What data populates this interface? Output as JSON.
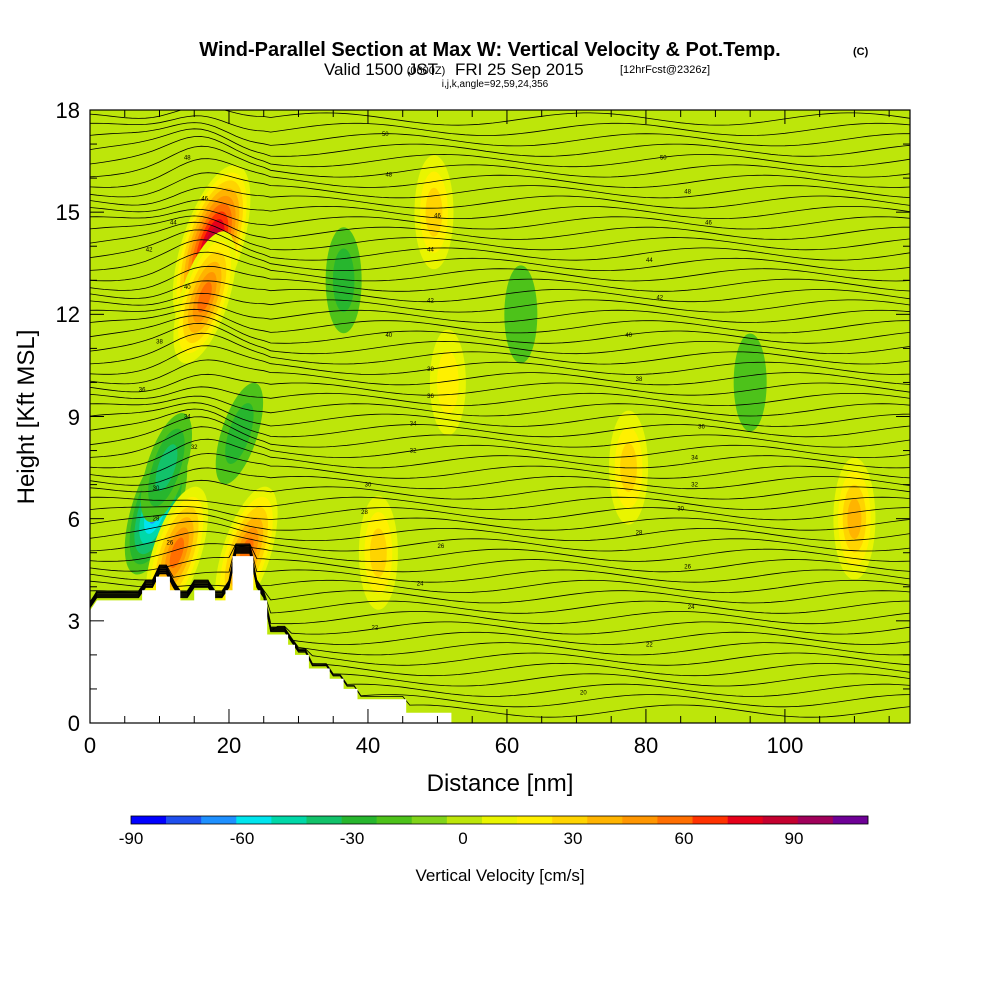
{
  "title": {
    "main": "Wind-Parallel Section at Max W: Vertical Velocity & Pot.Temp.",
    "copyright": "(C)",
    "valid": "Valid 1500 JST",
    "zulu": "(0600Z)",
    "date": "FRI 25 Sep 2015",
    "fcst": "[12hrFcst@2326z]",
    "params": "i,j,k,angle=92,59,24,356"
  },
  "chart_data": {
    "type": "heatmap",
    "xlabel": "Distance [nm]",
    "ylabel": "Height [Kft MSL]",
    "xlim": [
      0,
      118
    ],
    "ylim": [
      0,
      18
    ],
    "xticks": [
      "0",
      "20",
      "40",
      "60",
      "80",
      "100"
    ],
    "yticks": [
      "0",
      "3",
      "6",
      "9",
      "12",
      "15",
      "18"
    ],
    "colorbar": {
      "label": "Vertical Velocity [cm/s]",
      "ticks": [
        "-90",
        "-60",
        "-30",
        "0",
        "30",
        "60",
        "90"
      ],
      "min": -90,
      "max": 110,
      "step": 10,
      "colors": [
        "#0000ff",
        "#1f4fee",
        "#1e90ff",
        "#00e5ee",
        "#00d8a8",
        "#12c26a",
        "#27b62e",
        "#4dc21a",
        "#80d41a",
        "#bde60a",
        "#e9f500",
        "#fff000",
        "#ffd400",
        "#ffb400",
        "#ff9600",
        "#ff6e00",
        "#ff3200",
        "#e6001a",
        "#c4002f",
        "#a0005a",
        "#6e0096"
      ]
    },
    "velocity_features": [
      {
        "x": 17.5,
        "y": 14.0,
        "value": 100
      },
      {
        "x": 16.5,
        "y": 12.5,
        "value": 60
      },
      {
        "x": 9.5,
        "y": 6.3,
        "value": -60
      },
      {
        "x": 11.0,
        "y": 7.5,
        "value": -30
      },
      {
        "x": 22.5,
        "y": 5.0,
        "value": 60
      },
      {
        "x": 12.5,
        "y": 5.0,
        "value": 60
      },
      {
        "x": 21.5,
        "y": 8.5,
        "value": -20
      },
      {
        "x": 49.5,
        "y": 15.0,
        "value": 30
      },
      {
        "x": 51.5,
        "y": 10.0,
        "value": 20
      },
      {
        "x": 41.5,
        "y": 5.0,
        "value": 30
      },
      {
        "x": 77.5,
        "y": 7.5,
        "value": 30
      },
      {
        "x": 110.0,
        "y": 6.0,
        "value": 40
      },
      {
        "x": 36.5,
        "y": 13.0,
        "value": -20
      },
      {
        "x": 62.0,
        "y": 12.0,
        "value": -10
      },
      {
        "x": 95.0,
        "y": 10.0,
        "value": -10
      }
    ],
    "isotherm_labels": [
      {
        "x": 42.5,
        "y": 17.3,
        "text": "50"
      },
      {
        "x": 82.5,
        "y": 16.6,
        "text": "50"
      },
      {
        "x": 14.0,
        "y": 16.6,
        "text": "48"
      },
      {
        "x": 43.0,
        "y": 16.1,
        "text": "48"
      },
      {
        "x": 86.0,
        "y": 15.6,
        "text": "48"
      },
      {
        "x": 16.5,
        "y": 15.4,
        "text": "46"
      },
      {
        "x": 50.0,
        "y": 14.9,
        "text": "46"
      },
      {
        "x": 89.0,
        "y": 14.7,
        "text": "46"
      },
      {
        "x": 12.0,
        "y": 14.7,
        "text": "44"
      },
      {
        "x": 49.0,
        "y": 13.9,
        "text": "44"
      },
      {
        "x": 80.5,
        "y": 13.6,
        "text": "44"
      },
      {
        "x": 8.5,
        "y": 13.9,
        "text": "42"
      },
      {
        "x": 49.0,
        "y": 12.4,
        "text": "42"
      },
      {
        "x": 82.0,
        "y": 12.5,
        "text": "42"
      },
      {
        "x": 14.0,
        "y": 12.8,
        "text": "40"
      },
      {
        "x": 43.0,
        "y": 11.4,
        "text": "40"
      },
      {
        "x": 77.5,
        "y": 11.4,
        "text": "40"
      },
      {
        "x": 10.0,
        "y": 11.2,
        "text": "38"
      },
      {
        "x": 49.0,
        "y": 10.4,
        "text": "38"
      },
      {
        "x": 79.0,
        "y": 10.1,
        "text": "38"
      },
      {
        "x": 7.5,
        "y": 9.8,
        "text": "36"
      },
      {
        "x": 49.0,
        "y": 9.6,
        "text": "36"
      },
      {
        "x": 88.0,
        "y": 8.7,
        "text": "36"
      },
      {
        "x": 14.0,
        "y": 9.0,
        "text": "34"
      },
      {
        "x": 46.5,
        "y": 8.8,
        "text": "34"
      },
      {
        "x": 87.0,
        "y": 7.8,
        "text": "34"
      },
      {
        "x": 15.0,
        "y": 8.1,
        "text": "32"
      },
      {
        "x": 46.5,
        "y": 8.0,
        "text": "32"
      },
      {
        "x": 87.0,
        "y": 7.0,
        "text": "32"
      },
      {
        "x": 40.0,
        "y": 7.0,
        "text": "30"
      },
      {
        "x": 85.0,
        "y": 6.3,
        "text": "30"
      },
      {
        "x": 39.5,
        "y": 6.2,
        "text": "28"
      },
      {
        "x": 79.0,
        "y": 5.6,
        "text": "28"
      },
      {
        "x": 50.5,
        "y": 5.2,
        "text": "26"
      },
      {
        "x": 86.0,
        "y": 4.6,
        "text": "26"
      },
      {
        "x": 47.5,
        "y": 4.1,
        "text": "24"
      },
      {
        "x": 86.5,
        "y": 3.4,
        "text": "24"
      },
      {
        "x": 41.0,
        "y": 2.8,
        "text": "22"
      },
      {
        "x": 80.5,
        "y": 2.3,
        "text": "22"
      },
      {
        "x": 71.0,
        "y": 0.9,
        "text": "20"
      },
      {
        "x": 9.5,
        "y": 6.9,
        "text": "30"
      },
      {
        "x": 9.5,
        "y": 6.0,
        "text": "28"
      },
      {
        "x": 11.5,
        "y": 5.3,
        "text": "26"
      }
    ],
    "terrain_profile": [
      [
        0,
        3.3
      ],
      [
        1,
        3.6
      ],
      [
        7.5,
        3.6
      ],
      [
        7.5,
        3.9
      ],
      [
        9.5,
        3.9
      ],
      [
        9.5,
        4.3
      ],
      [
        11.5,
        4.3
      ],
      [
        11.5,
        3.9
      ],
      [
        13,
        3.9
      ],
      [
        13,
        3.6
      ],
      [
        15,
        3.6
      ],
      [
        15,
        3.9
      ],
      [
        18,
        3.9
      ],
      [
        18,
        3.6
      ],
      [
        19.5,
        3.6
      ],
      [
        19.5,
        3.9
      ],
      [
        20.5,
        3.9
      ],
      [
        20.5,
        4.9
      ],
      [
        23.5,
        4.9
      ],
      [
        23.5,
        3.9
      ],
      [
        24.5,
        3.9
      ],
      [
        24.5,
        3.6
      ],
      [
        25.5,
        3.6
      ],
      [
        25.5,
        2.6
      ],
      [
        28.5,
        2.6
      ],
      [
        28.5,
        2.3
      ],
      [
        29.5,
        2.3
      ],
      [
        29.5,
        2.0
      ],
      [
        31.5,
        2.0
      ],
      [
        31.5,
        1.6
      ],
      [
        34.5,
        1.6
      ],
      [
        34.5,
        1.3
      ],
      [
        36.5,
        1.3
      ],
      [
        36.5,
        1.0
      ],
      [
        38.5,
        1.0
      ],
      [
        38.5,
        0.7
      ],
      [
        45.5,
        0.7
      ],
      [
        45.5,
        0.3
      ],
      [
        52,
        0.3
      ],
      [
        52,
        0.0
      ]
    ]
  }
}
